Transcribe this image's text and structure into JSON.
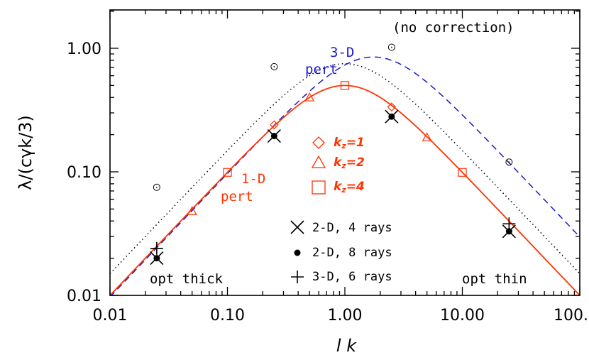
{
  "chart_data": {
    "type": "line",
    "xlabel": "l k",
    "ylabel": "λ/(cγk/3)",
    "x_scale": "log",
    "y_scale": "log",
    "xlim": [
      0.01,
      120
    ],
    "ylim": [
      0.01,
      2.3
    ],
    "x_ticks": [
      0.01,
      0.1,
      1,
      10,
      100
    ],
    "x_tick_labels": [
      "0.01",
      "0.10",
      "1.00",
      "10.00",
      "100."
    ],
    "y_ticks": [
      0.01,
      0.1,
      1
    ],
    "y_tick_labels": [
      "0.01",
      "0.10",
      "1.00"
    ],
    "colors": {
      "red": "#ff3300",
      "blue": "#1a1acc",
      "black": "#000000"
    },
    "annotations": {
      "no_correction": "(no correction)",
      "pert3d_line1": "3-D",
      "pert3d_line2": "pert",
      "pert1d_line1": "1-D",
      "pert1d_line2": "pert",
      "opt_thick": "opt thick",
      "opt_thin": "opt thin"
    },
    "legend_1d": [
      {
        "symbol": "diamond",
        "label_main": "k",
        "label_sub": "z",
        "label_rest": "=1"
      },
      {
        "symbol": "triangle",
        "label_main": "k",
        "label_sub": "z",
        "label_rest": "=2"
      },
      {
        "symbol": "square",
        "label_main": "k",
        "label_sub": "z",
        "label_rest": "=4"
      }
    ],
    "legend_multi": [
      {
        "symbol": "x",
        "label": "2-D, 4 rays"
      },
      {
        "symbol": "dot",
        "label": "2-D, 8 rays"
      },
      {
        "symbol": "plus",
        "label": "3-D, 6 rays"
      }
    ],
    "points_no_correction": [
      {
        "x": 0.025,
        "y": 0.075
      },
      {
        "x": 0.25,
        "y": 0.71
      },
      {
        "x": 2.5,
        "y": 1.02
      },
      {
        "x": 25,
        "y": 0.12
      }
    ],
    "points_diamond": [
      {
        "x": 0.25,
        "y": 0.24
      },
      {
        "x": 2.5,
        "y": 0.335
      }
    ],
    "points_triangle": [
      {
        "x": 0.05,
        "y": 0.048
      },
      {
        "x": 0.5,
        "y": 0.4
      },
      {
        "x": 5,
        "y": 0.19
      }
    ],
    "points_square": [
      {
        "x": 0.1,
        "y": 0.099
      },
      {
        "x": 1,
        "y": 0.5
      },
      {
        "x": 10,
        "y": 0.099
      }
    ],
    "points_x4": [
      {
        "x": 0.025,
        "y": 0.02
      },
      {
        "x": 0.25,
        "y": 0.195
      },
      {
        "x": 2.5,
        "y": 0.28
      },
      {
        "x": 25,
        "y": 0.033
      }
    ],
    "points_dot8": [
      {
        "x": 0.025,
        "y": 0.02
      },
      {
        "x": 0.25,
        "y": 0.195
      },
      {
        "x": 2.5,
        "y": 0.28
      },
      {
        "x": 25,
        "y": 0.033
      }
    ],
    "points_plus6": [
      {
        "x": 0.025,
        "y": 0.024
      },
      {
        "x": 25,
        "y": 0.038
      }
    ]
  }
}
